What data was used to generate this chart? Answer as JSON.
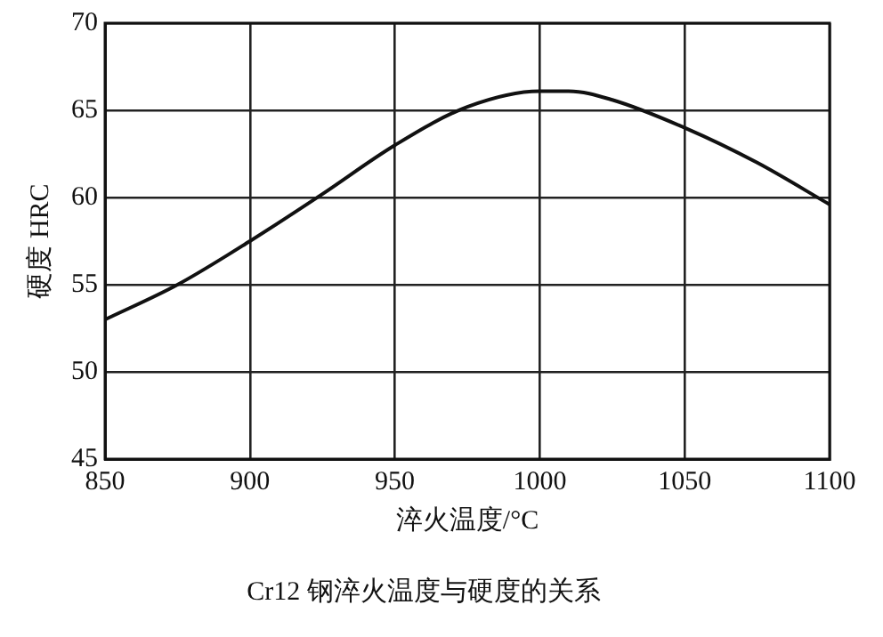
{
  "chart_data": {
    "type": "line",
    "title": "Cr12 钢淬火温度与硬度的关系",
    "xlabel": "淬火温度/°C",
    "ylabel": "硬度 HRC",
    "x": [
      850,
      875,
      900,
      925,
      950,
      975,
      1000,
      1010,
      1025,
      1050,
      1075,
      1100
    ],
    "series": [
      {
        "color": "#111111",
        "values": [
          53,
          55,
          57.5,
          60.2,
          63,
          65.2,
          66.1,
          66.1,
          65.6,
          64,
          62,
          59.6
        ]
      }
    ],
    "xlim": [
      850,
      1100
    ],
    "xticks": [
      850,
      900,
      950,
      1000,
      1050,
      1100
    ],
    "ylim": [
      45,
      70
    ],
    "yticks": [
      45,
      50,
      55,
      60,
      65,
      70
    ],
    "grid": true,
    "legend": false,
    "marker": "none",
    "line_style": "solid"
  }
}
